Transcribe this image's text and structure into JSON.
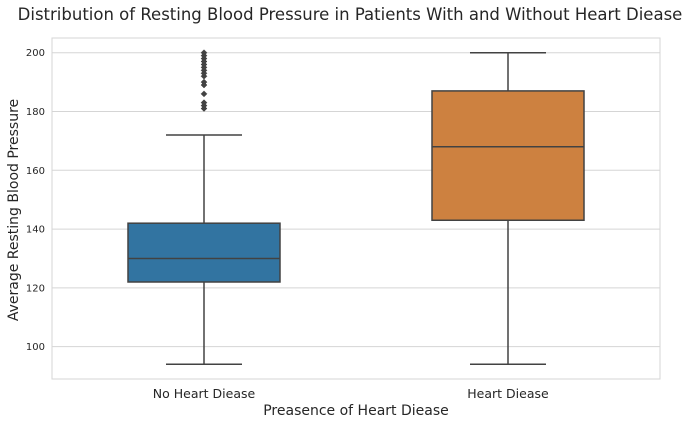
{
  "chart_data": {
    "type": "box",
    "title": "Distribution of Resting Blood Pressure in Patients With and Without Heart Diease",
    "xlabel": "Preasence of Heart Diease",
    "ylabel": "Average Resting Blood Pressure",
    "categories": [
      "No Heart Diease",
      "Heart Diease"
    ],
    "ylim": [
      89,
      205
    ],
    "yticks": [
      100,
      120,
      140,
      160,
      180,
      200
    ],
    "grid": "horizontal",
    "boxes": [
      {
        "name": "No Heart Diease",
        "color": "#3274a1",
        "whisker_low": 94,
        "q1": 122,
        "median": 130,
        "q3": 142,
        "whisker_high": 172,
        "outliers": [
          181,
          182,
          183,
          186,
          189,
          190,
          192,
          193,
          194,
          195,
          196,
          197,
          198,
          199,
          200
        ]
      },
      {
        "name": "Heart Diease",
        "color": "#cd8140",
        "whisker_low": 94,
        "q1": 143,
        "median": 168,
        "q3": 187,
        "whisker_high": 200,
        "outliers": []
      }
    ]
  }
}
